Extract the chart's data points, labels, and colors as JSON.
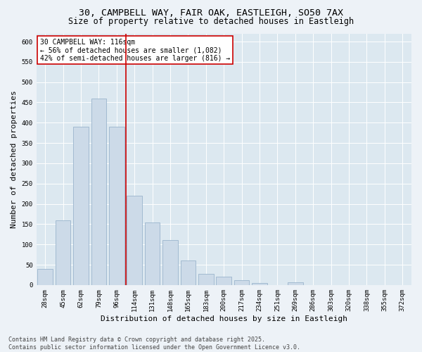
{
  "title_line1": "30, CAMPBELL WAY, FAIR OAK, EASTLEIGH, SO50 7AX",
  "title_line2": "Size of property relative to detached houses in Eastleigh",
  "xlabel": "Distribution of detached houses by size in Eastleigh",
  "ylabel": "Number of detached properties",
  "categories": [
    "28sqm",
    "45sqm",
    "62sqm",
    "79sqm",
    "96sqm",
    "114sqm",
    "131sqm",
    "148sqm",
    "165sqm",
    "183sqm",
    "200sqm",
    "217sqm",
    "234sqm",
    "251sqm",
    "269sqm",
    "286sqm",
    "303sqm",
    "320sqm",
    "338sqm",
    "355sqm",
    "372sqm"
  ],
  "values": [
    40,
    160,
    390,
    460,
    390,
    220,
    155,
    110,
    60,
    27,
    20,
    12,
    5,
    0,
    7,
    0,
    0,
    0,
    0,
    0,
    0
  ],
  "bar_color": "#ccdae8",
  "bar_edge_color": "#9ab4cc",
  "vline_position": 4.5,
  "vline_color": "#cc0000",
  "annotation_text": "30 CAMPBELL WAY: 116sqm\n← 56% of detached houses are smaller (1,082)\n42% of semi-detached houses are larger (816) →",
  "annotation_box_facecolor": "#ffffff",
  "annotation_box_edgecolor": "#cc0000",
  "ylim": [
    0,
    620
  ],
  "yticks": [
    0,
    50,
    100,
    150,
    200,
    250,
    300,
    350,
    400,
    450,
    500,
    550,
    600
  ],
  "fig_bg_color": "#edf2f7",
  "plot_bg_color": "#dce8f0",
  "footer_text": "Contains HM Land Registry data © Crown copyright and database right 2025.\nContains public sector information licensed under the Open Government Licence v3.0.",
  "title_fontsize": 9.5,
  "subtitle_fontsize": 8.5,
  "tick_fontsize": 6.5,
  "label_fontsize": 8,
  "annot_fontsize": 7,
  "footer_fontsize": 6
}
